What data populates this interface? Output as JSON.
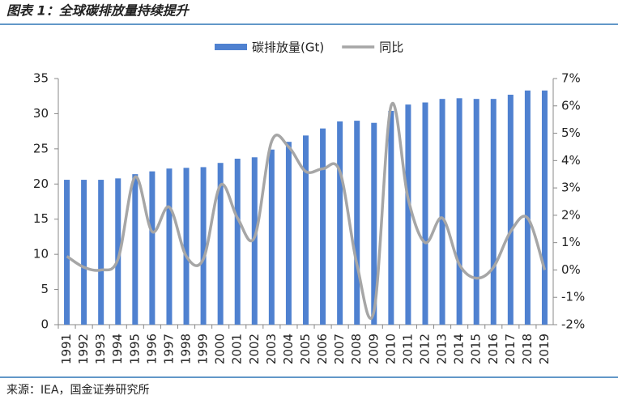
{
  "chart_data": {
    "type": "combo",
    "title": "图表 1：全球碳排放量持续提升",
    "source": "来源：IEA，国金证券研究所",
    "categories": [
      "1991",
      "1992",
      "1993",
      "1994",
      "1995",
      "1996",
      "1997",
      "1998",
      "1999",
      "2000",
      "2001",
      "2002",
      "2003",
      "2004",
      "2005",
      "2006",
      "2007",
      "2008",
      "2009",
      "2010",
      "2011",
      "2012",
      "2013",
      "2014",
      "2015",
      "2016",
      "2017",
      "2018",
      "2019"
    ],
    "series": [
      {
        "name": "碳排放量(Gt)",
        "type": "bar",
        "color": "#4f81d0",
        "values": [
          20.6,
          20.6,
          20.6,
          20.8,
          21.4,
          21.8,
          22.2,
          22.3,
          22.4,
          23.0,
          23.6,
          23.8,
          24.9,
          26.0,
          26.9,
          27.9,
          28.9,
          29.0,
          28.7,
          30.4,
          31.3,
          31.6,
          32.1,
          32.2,
          32.1,
          32.1,
          32.7,
          33.3,
          33.3
        ]
      },
      {
        "name": "同比",
        "type": "line",
        "axis": "y2",
        "color": "#a6a6a6",
        "values": [
          0.5,
          0.1,
          0.0,
          0.4,
          3.4,
          1.4,
          2.3,
          0.5,
          0.4,
          3.1,
          1.9,
          1.2,
          4.7,
          4.5,
          3.6,
          3.7,
          3.6,
          0.2,
          -1.5,
          6.0,
          2.6,
          1.0,
          1.9,
          0.2,
          -0.3,
          0.1,
          1.4,
          1.9,
          0.0
        ]
      }
    ],
    "ylim": [
      0,
      35
    ],
    "yticks": [
      0,
      5,
      10,
      15,
      20,
      25,
      30,
      35
    ],
    "y2lim": [
      -2,
      7
    ],
    "y2ticks": [
      {
        "value": -2,
        "label": "-2%"
      },
      {
        "value": -1,
        "label": "-1%"
      },
      {
        "value": 0,
        "label": "0%"
      },
      {
        "value": 1,
        "label": "1%"
      },
      {
        "value": 2,
        "label": "2%"
      },
      {
        "value": 3,
        "label": "3%"
      },
      {
        "value": 4,
        "label": "4%"
      },
      {
        "value": 5,
        "label": "5%"
      },
      {
        "value": 6,
        "label": "6%"
      },
      {
        "value": 7,
        "label": "7%"
      }
    ],
    "legend": "top"
  }
}
